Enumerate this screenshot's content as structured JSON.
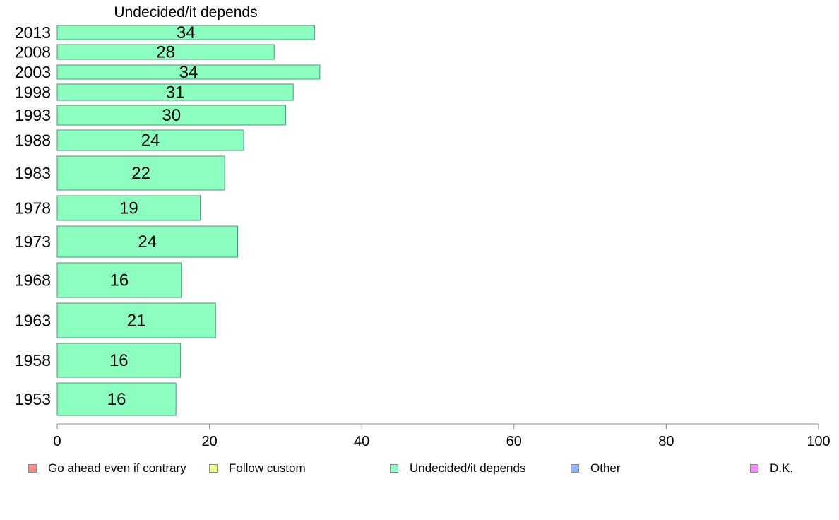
{
  "chart_data": {
    "type": "bar",
    "orientation": "horizontal",
    "title": "Undecided/it depends",
    "xlabel": "",
    "ylabel": "",
    "xlim": [
      0,
      100
    ],
    "x_ticks": [
      "0",
      "20",
      "40",
      "60",
      "80",
      "100"
    ],
    "categories": [
      "2013",
      "2008",
      "2003",
      "1998",
      "1993",
      "1988",
      "1983",
      "1978",
      "1973",
      "1968",
      "1963",
      "1958",
      "1953"
    ],
    "series": [
      {
        "name": "Undecided/it depends",
        "color": "#8cffc0",
        "values": [
          34,
          28,
          34,
          31,
          30,
          24,
          22,
          19,
          24,
          16,
          21,
          16,
          16
        ],
        "bar_extent": [
          33.8,
          28.5,
          34.5,
          31.0,
          30.0,
          24.5,
          22.0,
          18.8,
          23.7,
          16.3,
          20.8,
          16.2,
          15.6
        ]
      }
    ],
    "grid": false,
    "legend": {
      "position": "bottom",
      "entries": [
        {
          "label": "Go ahead even if contrary",
          "color": "#ff8c8c"
        },
        {
          "label": "Follow custom",
          "color": "#e8ff8c"
        },
        {
          "label": "Undecided/it depends",
          "color": "#8cffc0"
        },
        {
          "label": "Other",
          "color": "#8cb4ff"
        },
        {
          "label": "D.K.",
          "color": "#f08cff"
        }
      ]
    }
  }
}
